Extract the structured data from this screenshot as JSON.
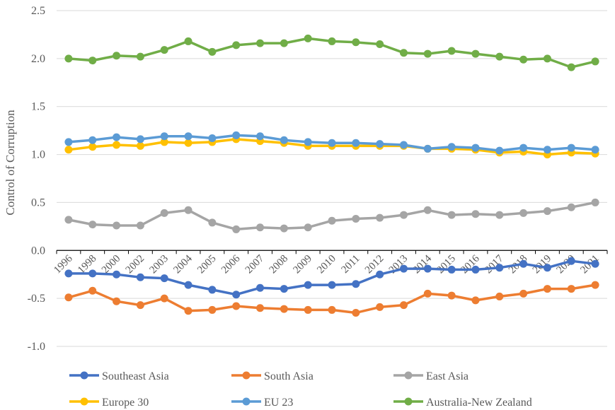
{
  "chart_data": {
    "type": "line",
    "title": "",
    "xlabel": "",
    "ylabel": "Control of Corruption",
    "ylim": [
      -1.0,
      2.5
    ],
    "yticks": [
      "2.5",
      "2.0",
      "1.5",
      "1.0",
      "0.5",
      "0.0",
      "-0.5",
      "-1.0"
    ],
    "grid": true,
    "legend_position": "bottom",
    "categories": [
      "1996",
      "1998",
      "2000",
      "2002",
      "2003",
      "2004",
      "2005",
      "2006",
      "2007",
      "2008",
      "2009",
      "2010",
      "2011",
      "2012",
      "2013",
      "2014",
      "2015",
      "2016",
      "2017",
      "2018",
      "2019",
      "2020",
      "2021"
    ],
    "series": [
      {
        "name": "Southeast Asia",
        "color": "#4472C4",
        "values": [
          -0.24,
          -0.24,
          -0.25,
          -0.28,
          -0.29,
          -0.36,
          -0.41,
          -0.46,
          -0.39,
          -0.4,
          -0.36,
          -0.36,
          -0.35,
          -0.25,
          -0.19,
          -0.19,
          -0.2,
          -0.2,
          -0.18,
          -0.14,
          -0.18,
          -0.11,
          -0.14
        ]
      },
      {
        "name": "South Asia",
        "color": "#ED7D31",
        "values": [
          -0.49,
          -0.42,
          -0.53,
          -0.57,
          -0.5,
          -0.63,
          -0.62,
          -0.58,
          -0.6,
          -0.61,
          -0.62,
          -0.62,
          -0.65,
          -0.59,
          -0.57,
          -0.45,
          -0.47,
          -0.52,
          -0.48,
          -0.45,
          -0.4,
          -0.4,
          -0.36
        ]
      },
      {
        "name": "East Asia",
        "color": "#A5A5A5",
        "values": [
          0.32,
          0.27,
          0.26,
          0.26,
          0.39,
          0.42,
          0.29,
          0.22,
          0.24,
          0.23,
          0.24,
          0.31,
          0.33,
          0.34,
          0.37,
          0.42,
          0.37,
          0.38,
          0.37,
          0.39,
          0.41,
          0.45,
          0.5
        ]
      },
      {
        "name": "Europe 30",
        "color": "#FFC000",
        "values": [
          1.05,
          1.08,
          1.1,
          1.09,
          1.13,
          1.12,
          1.13,
          1.16,
          1.14,
          1.12,
          1.09,
          1.09,
          1.09,
          1.09,
          1.09,
          1.06,
          1.06,
          1.05,
          1.02,
          1.03,
          1.0,
          1.02,
          1.01
        ]
      },
      {
        "name": "EU 23",
        "color": "#5B9BD5",
        "values": [
          1.13,
          1.15,
          1.18,
          1.16,
          1.19,
          1.19,
          1.17,
          1.2,
          1.19,
          1.15,
          1.13,
          1.12,
          1.12,
          1.11,
          1.1,
          1.06,
          1.08,
          1.07,
          1.04,
          1.07,
          1.05,
          1.07,
          1.05
        ]
      },
      {
        "name": "Australia-New Zealand",
        "color": "#70AD47",
        "values": [
          2.0,
          1.98,
          2.03,
          2.02,
          2.09,
          2.18,
          2.07,
          2.14,
          2.16,
          2.16,
          2.21,
          2.18,
          2.17,
          2.15,
          2.06,
          2.05,
          2.08,
          2.05,
          2.02,
          1.99,
          2.0,
          1.91,
          1.97
        ]
      }
    ]
  }
}
